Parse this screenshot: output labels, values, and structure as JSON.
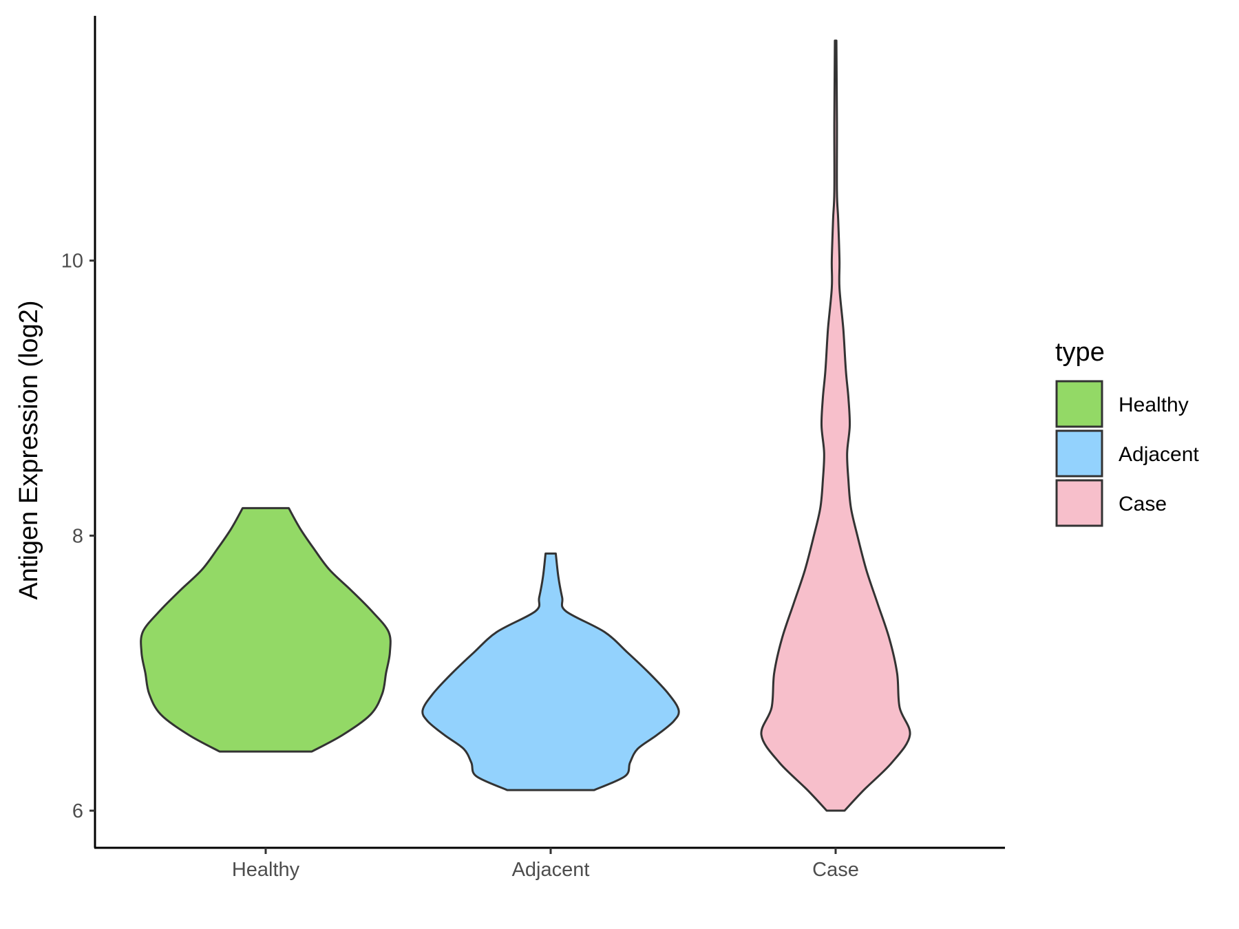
{
  "chart_data": {
    "type": "violin",
    "ylabel": "Antigen Expression (log2)",
    "xlabel": "",
    "yticks": [
      6,
      8,
      10
    ],
    "ylim": [
      5.73,
      11.78
    ],
    "grid": false,
    "legend": {
      "title": "type",
      "position": "right",
      "entries": [
        {
          "label": "Healthy",
          "color": "#93d966"
        },
        {
          "label": "Adjacent",
          "color": "#93d2fd"
        },
        {
          "label": "Case",
          "color": "#f7bfcb"
        }
      ]
    },
    "categories": [
      "Healthy",
      "Adjacent",
      "Case"
    ],
    "series": [
      {
        "category": "Healthy",
        "color": "#93d966",
        "min": 6.43,
        "max": 8.2,
        "profile": [
          [
            6.43,
            0.36
          ],
          [
            6.55,
            0.6
          ],
          [
            6.7,
            0.82
          ],
          [
            6.85,
            0.91
          ],
          [
            7.0,
            0.94
          ],
          [
            7.15,
            0.97
          ],
          [
            7.3,
            0.96
          ],
          [
            7.45,
            0.83
          ],
          [
            7.6,
            0.67
          ],
          [
            7.75,
            0.5
          ],
          [
            7.9,
            0.38
          ],
          [
            8.05,
            0.27
          ],
          [
            8.2,
            0.18
          ]
        ]
      },
      {
        "category": "Adjacent",
        "color": "#93d2fd",
        "min": 6.15,
        "max": 7.87,
        "profile": [
          [
            6.15,
            0.34
          ],
          [
            6.25,
            0.58
          ],
          [
            6.35,
            0.62
          ],
          [
            6.45,
            0.68
          ],
          [
            6.55,
            0.83
          ],
          [
            6.65,
            0.96
          ],
          [
            6.73,
            1.0
          ],
          [
            6.85,
            0.92
          ],
          [
            7.0,
            0.77
          ],
          [
            7.15,
            0.6
          ],
          [
            7.3,
            0.42
          ],
          [
            7.45,
            0.12
          ],
          [
            7.55,
            0.09
          ],
          [
            7.7,
            0.06
          ],
          [
            7.87,
            0.04
          ]
        ]
      },
      {
        "category": "Case",
        "color": "#f7bfcb",
        "min": 6.0,
        "max": 11.6,
        "profile": [
          [
            6.0,
            0.07
          ],
          [
            6.15,
            0.22
          ],
          [
            6.35,
            0.44
          ],
          [
            6.55,
            0.58
          ],
          [
            6.75,
            0.5
          ],
          [
            7.0,
            0.48
          ],
          [
            7.25,
            0.42
          ],
          [
            7.5,
            0.33
          ],
          [
            7.75,
            0.24
          ],
          [
            8.0,
            0.17
          ],
          [
            8.2,
            0.12
          ],
          [
            8.4,
            0.1
          ],
          [
            8.6,
            0.09
          ],
          [
            8.8,
            0.11
          ],
          [
            9.0,
            0.1
          ],
          [
            9.2,
            0.08
          ],
          [
            9.5,
            0.06
          ],
          [
            9.8,
            0.03
          ],
          [
            10.0,
            0.03
          ],
          [
            10.3,
            0.02
          ],
          [
            10.5,
            0.01
          ],
          [
            11.0,
            0.01
          ],
          [
            11.6,
            0.006
          ]
        ]
      }
    ]
  }
}
